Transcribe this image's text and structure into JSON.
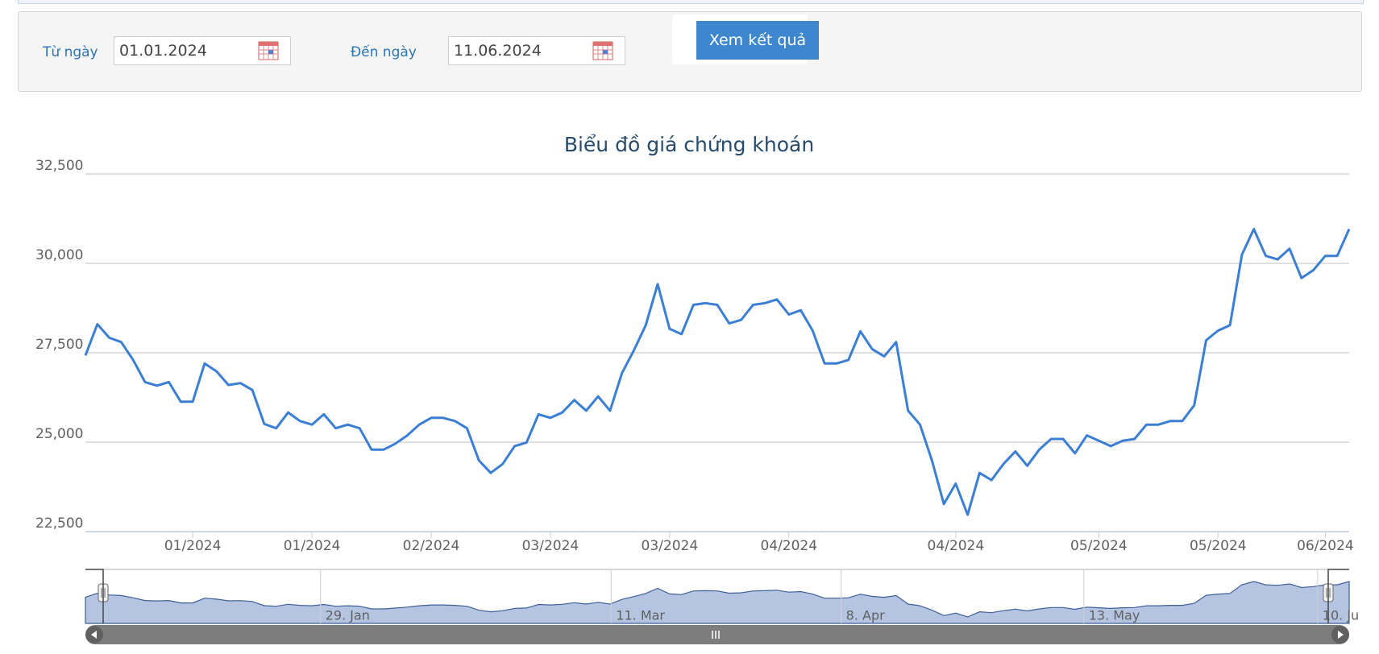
{
  "form": {
    "from_label": "Từ ngày",
    "from_value": "01.01.2024",
    "to_label": "Đến ngày",
    "to_value": "11.06.2024",
    "button": "Xem kết quả"
  },
  "chart_data": {
    "type": "line",
    "title": "Biểu đồ giá chứng khoán",
    "color": "#3a7fd5",
    "categories": [
      null,
      null,
      null,
      null,
      null,
      null,
      null,
      null,
      null,
      "01/2024",
      null,
      null,
      null,
      null,
      null,
      null,
      null,
      null,
      null,
      "01/2024",
      null,
      null,
      null,
      null,
      null,
      null,
      null,
      null,
      null,
      "02/2024",
      null,
      null,
      null,
      null,
      null,
      null,
      null,
      null,
      null,
      "03/2024",
      null,
      null,
      null,
      null,
      null,
      null,
      null,
      null,
      null,
      "03/2024",
      null,
      null,
      null,
      null,
      null,
      null,
      null,
      null,
      null,
      "04/2024",
      null,
      null,
      null,
      null,
      null,
      null,
      null,
      null,
      null,
      null,
      null,
      null,
      null,
      "04/2024",
      null,
      null,
      null,
      null,
      null,
      null,
      null,
      null,
      null,
      null,
      null,
      "05/2024",
      null,
      null,
      null,
      null,
      null,
      null,
      null,
      null,
      null,
      "05/2024",
      null,
      null,
      null,
      null,
      null,
      null,
      null,
      null,
      "06/2024",
      null,
      null
    ],
    "values": [
      27425,
      28300,
      27920,
      27800,
      27300,
      26680,
      26580,
      26680,
      26130,
      26130,
      27200,
      26980,
      26600,
      26650,
      26460,
      25510,
      25390,
      25830,
      25590,
      25490,
      25780,
      25390,
      25490,
      25390,
      24790,
      24790,
      24960,
      25190,
      25490,
      25680,
      25680,
      25590,
      25390,
      24490,
      24140,
      24390,
      24890,
      24990,
      25780,
      25680,
      25830,
      26180,
      25880,
      26280,
      25880,
      26930,
      27570,
      28270,
      29420,
      28170,
      28020,
      28840,
      28890,
      28840,
      28320,
      28420,
      28840,
      28890,
      28990,
      28570,
      28690,
      28120,
      27200,
      27200,
      27300,
      28100,
      27600,
      27400,
      27800,
      25880,
      25490,
      24490,
      23270,
      23840,
      22970,
      24140,
      23940,
      24390,
      24740,
      24340,
      24790,
      25090,
      25090,
      24690,
      25190,
      25040,
      24890,
      25040,
      25090,
      25490,
      25490,
      25590,
      25590,
      26030,
      27850,
      28120,
      28270,
      30240,
      30960,
      30210,
      30110,
      30410,
      29590,
      29810,
      30210,
      30210,
      30960
    ],
    "ylim": [
      22500,
      32500
    ],
    "yticks": [
      {
        "value": 22500,
        "label": "22,500"
      },
      {
        "value": 25000,
        "label": "25,000"
      },
      {
        "value": 27500,
        "label": "27,500"
      },
      {
        "value": 30000,
        "label": "30,000"
      },
      {
        "value": 32500,
        "label": "32,500"
      }
    ],
    "grid": true,
    "navigator": {
      "labels": [
        "29. Jan",
        "11. Mar",
        "8. Apr",
        "13. May",
        "10. Ju"
      ]
    }
  }
}
